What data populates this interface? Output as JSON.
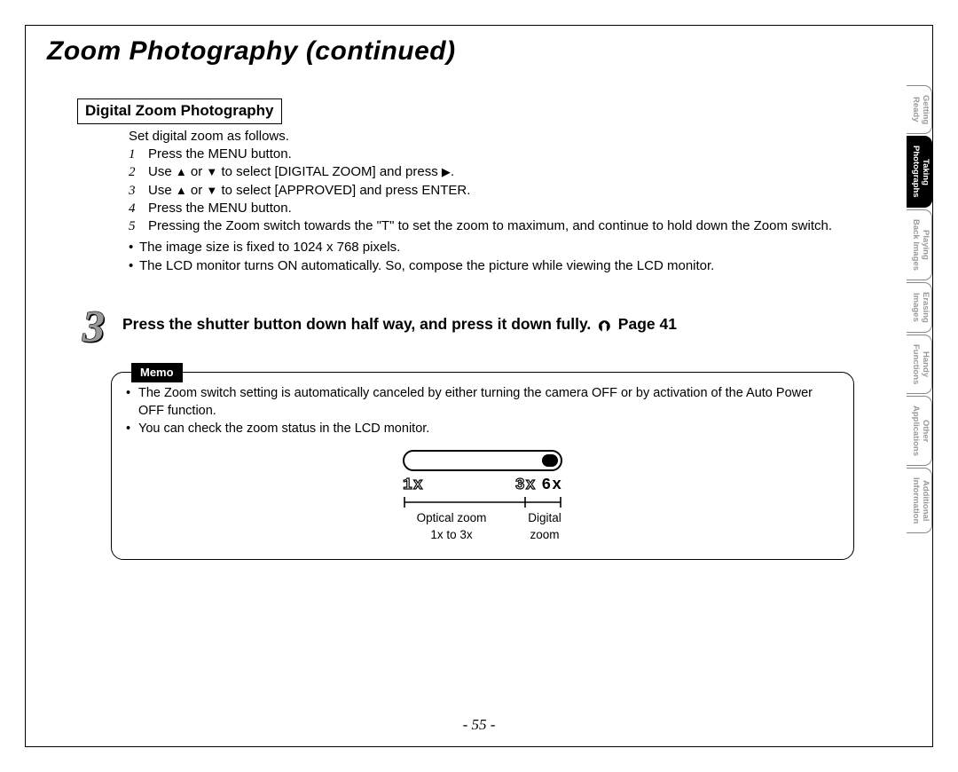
{
  "title": "Zoom Photography (continued)",
  "section_heading": "Digital Zoom Photography",
  "intro": "Set digital zoom as follows.",
  "steps": {
    "s1": "Press the MENU button.",
    "s2_pre": "Use ",
    "s2_mid": " or ",
    "s2_post": " to select [DIGITAL ZOOM] and press ",
    "s2_end": ".",
    "s3_pre": "Use ",
    "s3_mid": " or ",
    "s3_post": " to select [APPROVED] and press ENTER.",
    "s4": "Press the MENU button.",
    "s5": "Pressing the Zoom switch towards the \"T\" to set the zoom to maximum, and continue to hold down the Zoom switch."
  },
  "notes": {
    "n1": "The image size is fixed to 1024 x 768 pixels.",
    "n2": "The LCD monitor turns ON automatically. So, compose the picture while viewing the LCD monitor."
  },
  "step3": {
    "num": "3",
    "text_main": "Press the shutter button down half way, and press it down fully. ",
    "page_label": " Page 41"
  },
  "memo": {
    "label": "Memo",
    "m1": "The Zoom switch setting is automatically canceled by either turning the camera OFF or by activation of the Auto Power OFF function.",
    "m2": "You can check the zoom status in the LCD monitor.",
    "scale": {
      "x1": "1x",
      "x3": "3x",
      "x6": "6x"
    },
    "optical_label": "Optical zoom",
    "optical_range": "1x to 3x",
    "digital_label": "Digital",
    "digital_label2": "zoom"
  },
  "page_number": "- 55 -",
  "tabs": [
    {
      "label": "Getting\nReady",
      "active": false
    },
    {
      "label": "Taking\nPhotographs",
      "active": true
    },
    {
      "label": "Playing\nBack Images",
      "active": false
    },
    {
      "label": "Erasing\nImages",
      "active": false
    },
    {
      "label": "Handy\nFunctions",
      "active": false
    },
    {
      "label": "Other\nApplications",
      "active": false
    },
    {
      "label": "Additional\nInformation",
      "active": false
    }
  ],
  "colors": {
    "page_border": "#000000",
    "inactive_tab_text": "#9a9a9a",
    "active_tab_bg": "#000000",
    "step_num_fill": "#999999"
  }
}
